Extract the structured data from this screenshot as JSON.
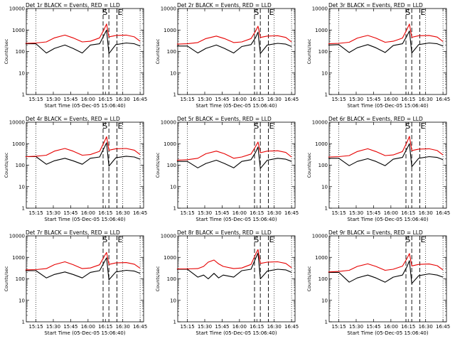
{
  "colors": {
    "events": "#000000",
    "lld": "#e60000",
    "background": "#ffffff"
  },
  "chart_data": [
    {
      "type": "line",
      "title": "Det 1r BLACK = Events, RED = LLD",
      "xlabel": "Start Time (05-Dec-05 15:06:40)",
      "ylabel": "Counts/sec",
      "y_scale": "log",
      "ylim": [
        1,
        10000
      ],
      "x_ticks": [
        "15:15",
        "15:30",
        "15:45",
        "16:00",
        "16:15",
        "16:30",
        "16:45"
      ],
      "y_ticks": [
        "1",
        "10",
        "100",
        "1000",
        "10000"
      ],
      "markers": [
        "S",
        "E"
      ],
      "series": [
        {
          "name": "Events",
          "x": [
            "15:06",
            "15:15",
            "15:24",
            "15:31",
            "15:40",
            "15:47",
            "15:55",
            "16:02",
            "16:10",
            "16:14",
            "16:16",
            "16:18",
            "16:24",
            "16:33",
            "16:40",
            "16:45"
          ],
          "y": [
            230,
            230,
            85,
            140,
            200,
            140,
            85,
            200,
            230,
            600,
            1000,
            80,
            210,
            250,
            230,
            180
          ]
        },
        {
          "name": "LLD",
          "x": [
            "15:06",
            "15:15",
            "15:24",
            "15:31",
            "15:40",
            "15:47",
            "15:55",
            "16:02",
            "16:10",
            "16:14",
            "16:16",
            "16:18",
            "16:24",
            "16:33",
            "16:40",
            "16:45"
          ],
          "y": [
            240,
            250,
            280,
            430,
            580,
            430,
            280,
            300,
            430,
            1100,
            1900,
            480,
            560,
            580,
            480,
            300
          ]
        }
      ]
    },
    {
      "type": "line",
      "title": "Det 2r BLACK = Events, RED = LLD",
      "xlabel": "Start Time (05-Dec-05 15:06:40)",
      "ylabel": "Counts/sec",
      "y_scale": "log",
      "ylim": [
        1,
        10000
      ],
      "x_ticks": [
        "15:15",
        "15:30",
        "15:45",
        "16:00",
        "16:15",
        "16:30",
        "16:45"
      ],
      "y_ticks": [
        "1",
        "10",
        "100",
        "1000",
        "10000"
      ],
      "markers": [
        "S",
        "E"
      ],
      "series": [
        {
          "name": "Events",
          "x": [
            "15:06",
            "15:15",
            "15:24",
            "15:31",
            "15:40",
            "15:47",
            "15:55",
            "16:02",
            "16:10",
            "16:14",
            "16:16",
            "16:18",
            "16:24",
            "16:33",
            "16:40",
            "16:45"
          ],
          "y": [
            180,
            180,
            85,
            140,
            200,
            140,
            85,
            170,
            210,
            450,
            800,
            80,
            200,
            240,
            220,
            170
          ]
        },
        {
          "name": "LLD",
          "x": [
            "15:06",
            "15:15",
            "15:24",
            "15:31",
            "15:40",
            "15:47",
            "15:55",
            "16:02",
            "16:10",
            "16:14",
            "16:16",
            "16:18",
            "16:24",
            "16:33",
            "16:40",
            "16:45"
          ],
          "y": [
            220,
            230,
            260,
            400,
            520,
            400,
            260,
            280,
            400,
            900,
            1500,
            450,
            520,
            540,
            450,
            280
          ]
        }
      ]
    },
    {
      "type": "line",
      "title": "Det 3r BLACK = Events, RED = LLD",
      "xlabel": "Start Time (05-Dec-05 15:06:40)",
      "ylabel": "Counts/sec",
      "y_scale": "log",
      "ylim": [
        1,
        10000
      ],
      "x_ticks": [
        "15:15",
        "15:30",
        "15:45",
        "16:00",
        "16:15",
        "16:30",
        "16:45"
      ],
      "y_ticks": [
        "1",
        "10",
        "100",
        "1000",
        "10000"
      ],
      "markers": [
        "S",
        "E"
      ],
      "series": [
        {
          "name": "Events",
          "x": [
            "15:06",
            "15:15",
            "15:24",
            "15:31",
            "15:40",
            "15:47",
            "15:55",
            "16:02",
            "16:10",
            "16:14",
            "16:16",
            "16:18",
            "16:24",
            "16:33",
            "16:40",
            "16:45"
          ],
          "y": [
            200,
            210,
            90,
            150,
            210,
            150,
            90,
            190,
            230,
            550,
            900,
            85,
            210,
            250,
            230,
            180
          ]
        },
        {
          "name": "LLD",
          "x": [
            "15:06",
            "15:15",
            "15:24",
            "15:31",
            "15:40",
            "15:47",
            "15:55",
            "16:02",
            "16:10",
            "16:14",
            "16:16",
            "16:18",
            "16:24",
            "16:33",
            "16:40",
            "16:45"
          ],
          "y": [
            230,
            240,
            270,
            420,
            560,
            420,
            270,
            300,
            420,
            1100,
            1900,
            460,
            540,
            560,
            470,
            290
          ]
        }
      ]
    },
    {
      "type": "line",
      "title": "Det 4r BLACK = Events, RED = LLD",
      "xlabel": "Start Time (05-Dec-05 15:06:40)",
      "ylabel": "Counts/sec",
      "y_scale": "log",
      "ylim": [
        1,
        10000
      ],
      "x_ticks": [
        "15:15",
        "15:30",
        "15:45",
        "16:00",
        "16:15",
        "16:30",
        "16:45"
      ],
      "y_ticks": [
        "1",
        "10",
        "100",
        "1000",
        "10000"
      ],
      "markers": [
        "S",
        "E"
      ],
      "series": [
        {
          "name": "Events",
          "x": [
            "15:06",
            "15:15",
            "15:24",
            "15:31",
            "15:40",
            "15:47",
            "15:55",
            "16:02",
            "16:10",
            "16:14",
            "16:16",
            "16:18",
            "16:24",
            "16:33",
            "16:40",
            "16:45"
          ],
          "y": [
            250,
            250,
            110,
            160,
            210,
            160,
            110,
            210,
            240,
            650,
            1100,
            90,
            220,
            260,
            240,
            190
          ]
        },
        {
          "name": "LLD",
          "x": [
            "15:06",
            "15:15",
            "15:24",
            "15:31",
            "15:40",
            "15:47",
            "15:55",
            "16:02",
            "16:10",
            "16:14",
            "16:16",
            "16:18",
            "16:24",
            "16:33",
            "16:40",
            "16:45"
          ],
          "y": [
            250,
            260,
            290,
            450,
            600,
            450,
            290,
            310,
            440,
            1200,
            2100,
            500,
            580,
            600,
            500,
            310
          ]
        }
      ]
    },
    {
      "type": "line",
      "title": "Det 5r BLACK = Events, RED = LLD",
      "xlabel": "Start Time (05-Dec-05 15:06:40)",
      "ylabel": "Counts/sec",
      "y_scale": "log",
      "ylim": [
        1,
        10000
      ],
      "x_ticks": [
        "15:15",
        "15:30",
        "15:45",
        "16:00",
        "16:15",
        "16:30",
        "16:45"
      ],
      "y_ticks": [
        "1",
        "10",
        "100",
        "1000",
        "10000"
      ],
      "markers": [
        "S",
        "E"
      ],
      "series": [
        {
          "name": "Events",
          "x": [
            "15:06",
            "15:15",
            "15:24",
            "15:31",
            "15:40",
            "15:47",
            "15:55",
            "16:02",
            "16:10",
            "16:14",
            "16:16",
            "16:18",
            "16:24",
            "16:33",
            "16:40",
            "16:45"
          ],
          "y": [
            150,
            150,
            75,
            120,
            170,
            120,
            75,
            150,
            180,
            400,
            700,
            70,
            170,
            210,
            190,
            150
          ]
        },
        {
          "name": "LLD",
          "x": [
            "15:06",
            "15:15",
            "15:24",
            "15:31",
            "15:40",
            "15:47",
            "15:55",
            "16:02",
            "16:10",
            "16:14",
            "16:16",
            "16:18",
            "16:24",
            "16:33",
            "16:40",
            "16:45"
          ],
          "y": [
            170,
            180,
            210,
            340,
            450,
            340,
            210,
            240,
            330,
            750,
            1200,
            380,
            450,
            470,
            390,
            240
          ]
        }
      ]
    },
    {
      "type": "line",
      "title": "Det 6r BLACK = Events, RED = LLD",
      "xlabel": "Start Time (05-Dec-05 15:06:40)",
      "ylabel": "Counts/sec",
      "y_scale": "log",
      "ylim": [
        1,
        10000
      ],
      "x_ticks": [
        "15:15",
        "15:30",
        "15:45",
        "16:00",
        "16:15",
        "16:30",
        "16:45"
      ],
      "y_ticks": [
        "1",
        "10",
        "100",
        "1000",
        "10000"
      ],
      "markers": [
        "S",
        "E"
      ],
      "series": [
        {
          "name": "Events",
          "x": [
            "15:06",
            "15:15",
            "15:24",
            "15:31",
            "15:40",
            "15:47",
            "15:55",
            "16:02",
            "16:10",
            "16:14",
            "16:16",
            "16:18",
            "16:24",
            "16:33",
            "16:40",
            "16:45"
          ],
          "y": [
            210,
            210,
            95,
            150,
            200,
            150,
            95,
            190,
            230,
            600,
            1000,
            85,
            210,
            250,
            230,
            180
          ]
        },
        {
          "name": "LLD",
          "x": [
            "15:06",
            "15:15",
            "15:24",
            "15:31",
            "15:40",
            "15:47",
            "15:55",
            "16:02",
            "16:10",
            "16:14",
            "16:16",
            "16:18",
            "16:24",
            "16:33",
            "16:40",
            "16:45"
          ],
          "y": [
            240,
            250,
            280,
            430,
            580,
            430,
            280,
            300,
            430,
            1200,
            2200,
            480,
            560,
            580,
            480,
            300
          ]
        }
      ]
    },
    {
      "type": "line",
      "title": "Det 7r BLACK = Events, RED = LLD",
      "xlabel": "Start Time (05-Dec-05 15:06:40)",
      "ylabel": "Counts/sec",
      "y_scale": "log",
      "ylim": [
        1,
        10000
      ],
      "x_ticks": [
        "15:15",
        "15:30",
        "15:45",
        "16:00",
        "16:15",
        "16:30",
        "16:45"
      ],
      "y_ticks": [
        "1",
        "10",
        "100",
        "1000",
        "10000"
      ],
      "markers": [
        "S",
        "E"
      ],
      "series": [
        {
          "name": "Events",
          "x": [
            "15:06",
            "15:15",
            "15:24",
            "15:31",
            "15:40",
            "15:47",
            "15:55",
            "16:02",
            "16:10",
            "16:14",
            "16:16",
            "16:18",
            "16:24",
            "16:33",
            "16:40",
            "16:45"
          ],
          "y": [
            240,
            240,
            110,
            160,
            210,
            160,
            110,
            200,
            240,
            600,
            950,
            90,
            210,
            250,
            230,
            180
          ]
        },
        {
          "name": "LLD",
          "x": [
            "15:06",
            "15:15",
            "15:24",
            "15:31",
            "15:40",
            "15:47",
            "15:55",
            "16:02",
            "16:10",
            "16:14",
            "16:16",
            "16:18",
            "16:24",
            "16:33",
            "16:40",
            "16:45"
          ],
          "y": [
            260,
            270,
            300,
            460,
            620,
            460,
            300,
            320,
            450,
            1100,
            1700,
            470,
            550,
            570,
            480,
            310
          ]
        }
      ]
    },
    {
      "type": "line",
      "title": "Det 8r BLACK = Events, RED = LLD",
      "xlabel": "Start Time (05-Dec-05 15:06:40)",
      "ylabel": "Counts/sec",
      "y_scale": "log",
      "ylim": [
        1,
        10000
      ],
      "x_ticks": [
        "15:15",
        "15:30",
        "15:45",
        "16:00",
        "16:15",
        "16:30",
        "16:45"
      ],
      "y_ticks": [
        "1",
        "10",
        "100",
        "1000",
        "10000"
      ],
      "markers": [
        "S",
        "E"
      ],
      "series": [
        {
          "name": "Events",
          "x": [
            "15:06",
            "15:15",
            "15:24",
            "15:29",
            "15:33",
            "15:38",
            "15:42",
            "15:46",
            "15:55",
            "16:02",
            "16:10",
            "16:14",
            "16:16",
            "16:18",
            "16:24",
            "16:33",
            "16:40",
            "16:45"
          ],
          "y": [
            280,
            280,
            120,
            150,
            100,
            180,
            110,
            150,
            120,
            240,
            280,
            900,
            1600,
            100,
            230,
            280,
            260,
            200
          ]
        },
        {
          "name": "LLD",
          "x": [
            "15:06",
            "15:15",
            "15:24",
            "15:29",
            "15:33",
            "15:38",
            "15:42",
            "15:46",
            "15:55",
            "16:02",
            "16:10",
            "16:14",
            "16:16",
            "16:18",
            "16:24",
            "16:33",
            "16:40",
            "16:45"
          ],
          "y": [
            290,
            290,
            300,
            380,
            600,
            750,
            500,
            380,
            300,
            320,
            470,
            1400,
            2300,
            520,
            600,
            620,
            520,
            330
          ]
        }
      ]
    },
    {
      "type": "line",
      "title": "Det 9r BLACK = Events, RED = LLD",
      "xlabel": "Start Time (05-Dec-05 15:06:40)",
      "ylabel": "Counts/sec",
      "y_scale": "log",
      "ylim": [
        1,
        10000
      ],
      "x_ticks": [
        "15:15",
        "15:30",
        "15:45",
        "16:00",
        "16:15",
        "16:30",
        "16:45"
      ],
      "y_ticks": [
        "1",
        "10",
        "100",
        "1000",
        "10000"
      ],
      "markers": [
        "S",
        "E"
      ],
      "series": [
        {
          "name": "Events",
          "x": [
            "15:06",
            "15:15",
            "15:24",
            "15:31",
            "15:40",
            "15:47",
            "15:55",
            "16:02",
            "16:10",
            "16:14",
            "16:16",
            "16:18",
            "16:24",
            "16:33",
            "16:40",
            "16:45"
          ],
          "y": [
            200,
            200,
            70,
            110,
            150,
            110,
            70,
            120,
            150,
            380,
            700,
            60,
            140,
            170,
            150,
            120
          ]
        },
        {
          "name": "LLD",
          "x": [
            "15:06",
            "15:15",
            "15:24",
            "15:31",
            "15:40",
            "15:47",
            "15:55",
            "16:02",
            "16:10",
            "16:14",
            "16:16",
            "16:18",
            "16:24",
            "16:33",
            "16:40",
            "16:45"
          ],
          "y": [
            210,
            220,
            250,
            380,
            500,
            380,
            250,
            280,
            390,
            900,
            1500,
            400,
            470,
            490,
            410,
            260
          ]
        }
      ]
    }
  ]
}
